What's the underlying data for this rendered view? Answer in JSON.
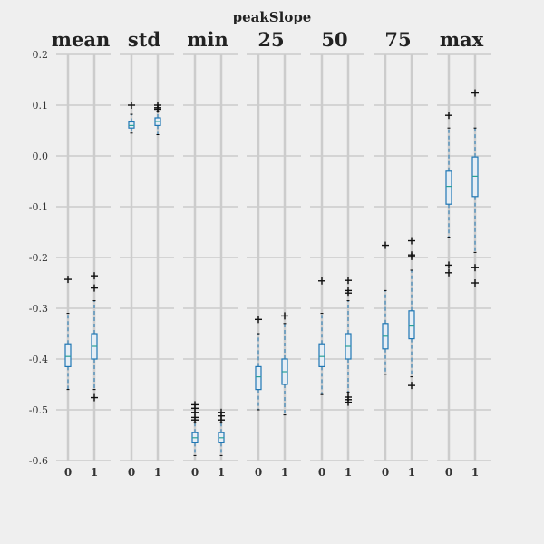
{
  "chart_data": {
    "type": "box",
    "title": "peakSlope",
    "ylim": [
      -0.6,
      0.2
    ],
    "yticks": [
      "0.2",
      "0.1",
      "0.0",
      "-0.1",
      "-0.2",
      "-0.3",
      "-0.4",
      "-0.5",
      "-0.6"
    ],
    "grid": true,
    "colors": {
      "box": "#1f77b4",
      "median": "#2aa198",
      "whisker": "#1f77b4",
      "flier": "#000000",
      "grid": "#cccccc",
      "background": "#efefef"
    },
    "panels": [
      {
        "label": "mean",
        "groups": [
          {
            "category": "0",
            "min": -0.46,
            "q1": -0.415,
            "median": -0.395,
            "q3": -0.37,
            "max": -0.31,
            "outliers": [
              -0.243
            ]
          },
          {
            "category": "1",
            "min": -0.46,
            "q1": -0.4,
            "median": -0.375,
            "q3": -0.35,
            "max": -0.285,
            "outliers": [
              -0.236,
              -0.26,
              -0.476
            ]
          }
        ]
      },
      {
        "label": "std",
        "groups": [
          {
            "category": "0",
            "min": 0.045,
            "q1": 0.055,
            "median": 0.06,
            "q3": 0.067,
            "max": 0.082,
            "outliers": [
              0.1
            ]
          },
          {
            "category": "1",
            "min": 0.042,
            "q1": 0.06,
            "median": 0.068,
            "q3": 0.075,
            "max": 0.088,
            "outliers": [
              0.092,
              0.095,
              0.1
            ]
          }
        ]
      },
      {
        "label": "min",
        "groups": [
          {
            "category": "0",
            "min": -0.59,
            "q1": -0.565,
            "median": -0.555,
            "q3": -0.545,
            "max": -0.525,
            "outliers": [
              -0.49,
              -0.497,
              -0.505,
              -0.515,
              -0.52
            ]
          },
          {
            "category": "1",
            "min": -0.59,
            "q1": -0.565,
            "median": -0.555,
            "q3": -0.545,
            "max": -0.525,
            "outliers": [
              -0.505,
              -0.512,
              -0.52
            ]
          }
        ]
      },
      {
        "label": "25",
        "groups": [
          {
            "category": "0",
            "min": -0.5,
            "q1": -0.46,
            "median": -0.435,
            "q3": -0.415,
            "max": -0.35,
            "outliers": [
              -0.322
            ]
          },
          {
            "category": "1",
            "min": -0.51,
            "q1": -0.45,
            "median": -0.425,
            "q3": -0.4,
            "max": -0.33,
            "outliers": [
              -0.315
            ]
          }
        ]
      },
      {
        "label": "50",
        "groups": [
          {
            "category": "0",
            "min": -0.47,
            "q1": -0.415,
            "median": -0.395,
            "q3": -0.37,
            "max": -0.31,
            "outliers": [
              -0.246
            ]
          },
          {
            "category": "1",
            "min": -0.465,
            "q1": -0.4,
            "median": -0.375,
            "q3": -0.35,
            "max": -0.285,
            "outliers": [
              -0.245,
              -0.265,
              -0.27,
              -0.475,
              -0.48,
              -0.485
            ]
          }
        ]
      },
      {
        "label": "75",
        "groups": [
          {
            "category": "0",
            "min": -0.43,
            "q1": -0.38,
            "median": -0.355,
            "q3": -0.33,
            "max": -0.265,
            "outliers": [
              -0.176
            ]
          },
          {
            "category": "1",
            "min": -0.435,
            "q1": -0.36,
            "median": -0.335,
            "q3": -0.305,
            "max": -0.225,
            "outliers": [
              -0.167,
              -0.195,
              -0.198,
              -0.452
            ]
          }
        ]
      },
      {
        "label": "max",
        "groups": [
          {
            "category": "0",
            "min": -0.16,
            "q1": -0.095,
            "median": -0.06,
            "q3": -0.03,
            "max": 0.055,
            "outliers": [
              0.08,
              -0.215,
              -0.23
            ]
          },
          {
            "category": "1",
            "min": -0.19,
            "q1": -0.08,
            "median": -0.04,
            "q3": -0.002,
            "max": 0.055,
            "outliers": [
              0.124,
              -0.22,
              -0.25
            ]
          }
        ]
      }
    ]
  }
}
